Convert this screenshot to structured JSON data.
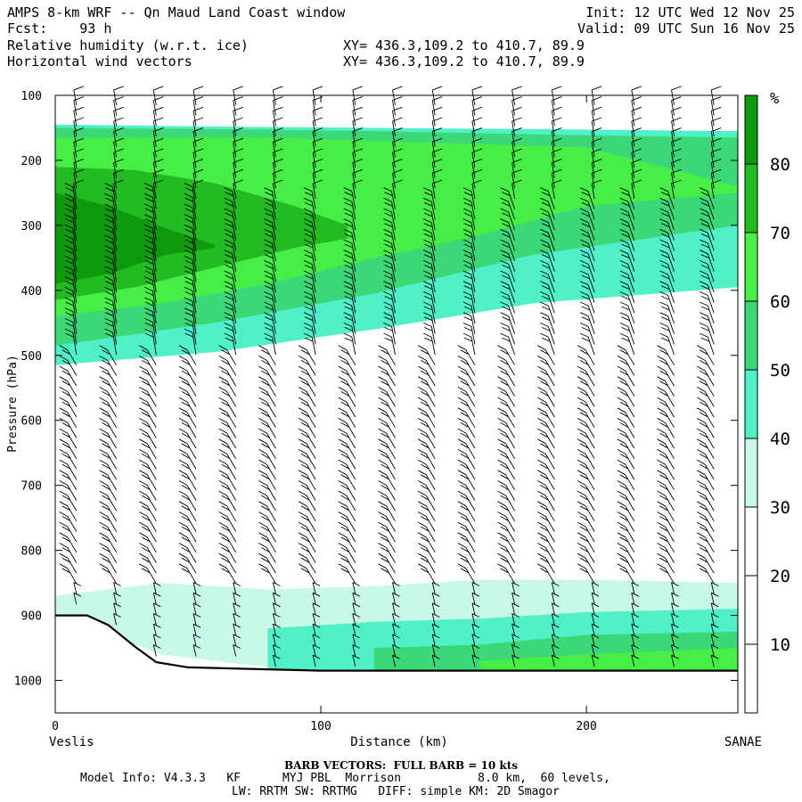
{
  "header": {
    "title": "AMPS 8-km WRF -- Qn Maud Land Coast window",
    "fcst_label": "Fcst:",
    "fcst_value": "93 h",
    "init": "Init: 12 UTC Wed 12 Nov 25",
    "valid": "Valid: 09 UTC Sun 16 Nov 25",
    "field1": "Relative humidity (w.r.t. ice)",
    "field2": "Horizontal wind vectors",
    "xy1": "XY= 436.3,109.2 to 410.7, 89.9",
    "xy2": "XY= 436.3,109.2 to 410.7, 89.9"
  },
  "chart_data": {
    "type": "heatmap",
    "title": "Relative humidity (w.r.t. ice) cross section",
    "xlabel": "Distance (km)",
    "ylabel": "Pressure (hPa)",
    "xlim": [
      0,
      257
    ],
    "ylim": [
      1050,
      100
    ],
    "x_ticks": [
      0,
      100,
      200
    ],
    "y_ticks": [
      100,
      200,
      300,
      400,
      500,
      600,
      700,
      800,
      900,
      1000
    ],
    "x_start_label": "Veslis",
    "x_end_label": "SANAE",
    "colorbar": {
      "unit": "%",
      "levels": [
        10,
        20,
        30,
        40,
        50,
        60,
        70,
        80
      ],
      "colors": [
        "#ffffff",
        "#ffffff",
        "#ffffff",
        "#c8f8e6",
        "#50f0c8",
        "#3cd878",
        "#46ee46",
        "#22bb22",
        "#0d9a0d"
      ]
    },
    "terrain_surface": [
      [
        0,
        900
      ],
      [
        12,
        900
      ],
      [
        20,
        915
      ],
      [
        30,
        948
      ],
      [
        38,
        972
      ],
      [
        50,
        980
      ],
      [
        100,
        985
      ],
      [
        160,
        985
      ],
      [
        257,
        985
      ]
    ],
    "rh_layers": [
      {
        "level": 40,
        "x": [
          0,
          60,
          120,
          180,
          257
        ],
        "p_top": [
          145,
          148,
          150,
          152,
          155
        ],
        "p_bottom": [
          515,
          495,
          460,
          420,
          395
        ]
      },
      {
        "level": 50,
        "x": [
          0,
          60,
          120,
          180,
          257
        ],
        "p_top": [
          150,
          152,
          155,
          160,
          165
        ],
        "p_bottom": [
          485,
          450,
          405,
          345,
          300
        ]
      },
      {
        "level": 60,
        "x": [
          0,
          40,
          80,
          120,
          160,
          200,
          257
        ],
        "p_top": [
          165,
          165,
          165,
          170,
          175,
          180,
          240
        ],
        "p_bottom": [
          440,
          420,
          390,
          350,
          315,
          270,
          250
        ]
      },
      {
        "level": 70,
        "x": [
          0,
          30,
          60,
          90,
          110
        ],
        "p_top": [
          210,
          215,
          235,
          270,
          300
        ],
        "p_bottom": [
          415,
          395,
          365,
          335,
          320
        ]
      },
      {
        "level": 80,
        "x": [
          0,
          20,
          42,
          60
        ],
        "p_top": [
          250,
          270,
          305,
          330
        ],
        "p_bottom": [
          390,
          375,
          345,
          335
        ]
      }
    ],
    "low_layers": [
      {
        "level": 30,
        "x": [
          0,
          40,
          80,
          120,
          160,
          200,
          257
        ],
        "p_top": [
          870,
          850,
          860,
          855,
          845,
          845,
          850
        ],
        "p_bottom": [
          900,
          960,
          980,
          985,
          985,
          985,
          985
        ]
      },
      {
        "level": 40,
        "x": [
          80,
          120,
          160,
          200,
          257
        ],
        "p_top": [
          920,
          910,
          905,
          895,
          890
        ],
        "p_bottom": [
          985,
          985,
          985,
          985,
          985
        ]
      },
      {
        "level": 50,
        "x": [
          120,
          160,
          200,
          257
        ],
        "p_top": [
          950,
          945,
          930,
          925
        ],
        "p_bottom": [
          985,
          985,
          985,
          985
        ]
      },
      {
        "level": 60,
        "x": [
          160,
          200,
          257
        ],
        "p_top": [
          970,
          960,
          950
        ],
        "p_bottom": [
          985,
          985,
          985
        ]
      }
    ],
    "wind_barbs": {
      "full_barb_kts": 10,
      "columns_km": [
        8,
        23,
        38,
        53,
        68,
        83,
        98,
        113,
        128,
        143,
        158,
        173,
        188,
        203,
        218,
        233,
        248
      ]
    }
  },
  "footer": {
    "barb_title": "BARB VECTORS:  FULL BARB = 10 kts",
    "model_info_1": "Model Info: V4.3.3   KF      MYJ PBL  Morrison           8.0 km,  60 levels,",
    "model_info_2": "LW: RRTM SW: RRTMG   DIFF: simple KM: 2D Smagor"
  }
}
